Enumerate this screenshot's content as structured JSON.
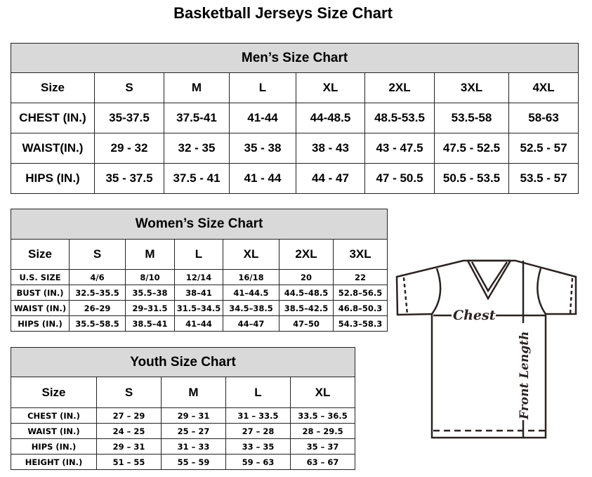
{
  "title": "Basketball Jerseys Size Chart",
  "men": {
    "title": "Men’s Size Chart",
    "header": [
      "Size",
      "S",
      "M",
      "L",
      "XL",
      "2XL",
      "3XL",
      "4XL"
    ],
    "rows": [
      [
        "CHEST (IN.)",
        "35-37.5",
        "37.5-41",
        "41-44",
        "44-48.5",
        "48.5-53.5",
        "53.5-58",
        "58-63"
      ],
      [
        "WAIST(IN.)",
        "29 - 32",
        "32 - 35",
        "35 - 38",
        "38 - 43",
        "43 - 47.5",
        "47.5 - 52.5",
        "52.5 - 57"
      ],
      [
        "HIPS (IN.)",
        "35 - 37.5",
        "37.5 - 41",
        "41 - 44",
        "44 - 47",
        "47 - 50.5",
        "50.5 - 53.5",
        "53.5 - 57"
      ]
    ]
  },
  "women": {
    "title": "Women’s Size Chart",
    "header": [
      "Size",
      "S",
      "M",
      "L",
      "XL",
      "2XL",
      "3XL"
    ],
    "rows": [
      [
        "U.S. SIZE",
        "4/6",
        "8/10",
        "12/14",
        "16/18",
        "20",
        "22"
      ],
      [
        "BUST (IN.)",
        "32.5–35.5",
        "35.5–38",
        "38–41",
        "41–44.5",
        "44.5–48.5",
        "52.8–56.5"
      ],
      [
        "WAIST (IN.)",
        "26–29",
        "29–31.5",
        "31.5–34.5",
        "34.5–38.5",
        "38.5–42.5",
        "46.8–50.3"
      ],
      [
        "HIPS (IN.)",
        "35.5–58.5",
        "38.5–41",
        "41–44",
        "44–47",
        "47–50",
        "54.3–58.3"
      ]
    ]
  },
  "youth": {
    "title": "Youth Size Chart",
    "header": [
      "Size",
      "S",
      "M",
      "L",
      "XL"
    ],
    "rows": [
      [
        "CHEST (IN.)",
        "27 – 29",
        "29 – 31",
        "31 – 33.5",
        "33.5 – 36.5"
      ],
      [
        "WAIST (IN.)",
        "24 – 25",
        "25 – 27",
        "27 – 28",
        "28 – 29.5"
      ],
      [
        "HIPS (IN.)",
        "29 – 31",
        "31 – 33",
        "33 – 35",
        "35 – 37"
      ],
      [
        "HEIGHT (IN.)",
        "51 – 55",
        "55 – 59",
        "59 – 63",
        "63 – 67"
      ]
    ]
  },
  "diagram": {
    "chest_label": "Chest",
    "length_label": "Front Length"
  },
  "colors": {
    "header_bg": "#d9d9d9",
    "line": "#2b2220"
  }
}
